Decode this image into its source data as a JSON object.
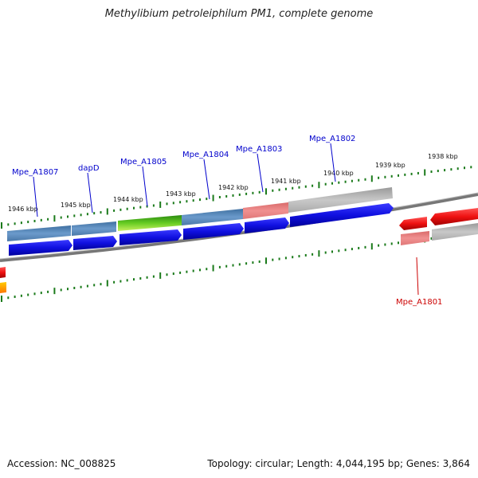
{
  "title": "Methylibium petroleiphilum PM1, complete genome",
  "footer": {
    "accession": "Accession: NC_008825",
    "stats": "Topology: circular; Length: 4,044,195 bp; Genes: 3,864"
  },
  "ruler": {
    "outer_labels": [
      "1946 kbp",
      "1945 kbp",
      "1944 kbp",
      "1943 kbp",
      "1942 kbp",
      "1941 kbp",
      "1940 kbp",
      "1939 kbp",
      "1938 kbp"
    ]
  },
  "genes": [
    {
      "name": "Mpe_A1807",
      "color": "#0000cc"
    },
    {
      "name": "dapD",
      "color": "#0000cc"
    },
    {
      "name": "Mpe_A1805",
      "color": "#0000cc"
    },
    {
      "name": "Mpe_A1804",
      "color": "#0000cc"
    },
    {
      "name": "Mpe_A1803",
      "color": "#0000cc"
    },
    {
      "name": "Mpe_A1802",
      "color": "#0000cc"
    },
    {
      "name": "Mpe_A1801",
      "color": "#cc0000"
    }
  ],
  "colors": {
    "forward_cds": "#1010e0",
    "reverse_cds": "#ee1111",
    "feature_steelblue": "#5a88b8",
    "feature_green": "#44aa22",
    "feature_pink": "#ee8888",
    "feature_gray": "#bbbbbb",
    "tick": "#1a7a1a",
    "backbone": "#777777"
  }
}
